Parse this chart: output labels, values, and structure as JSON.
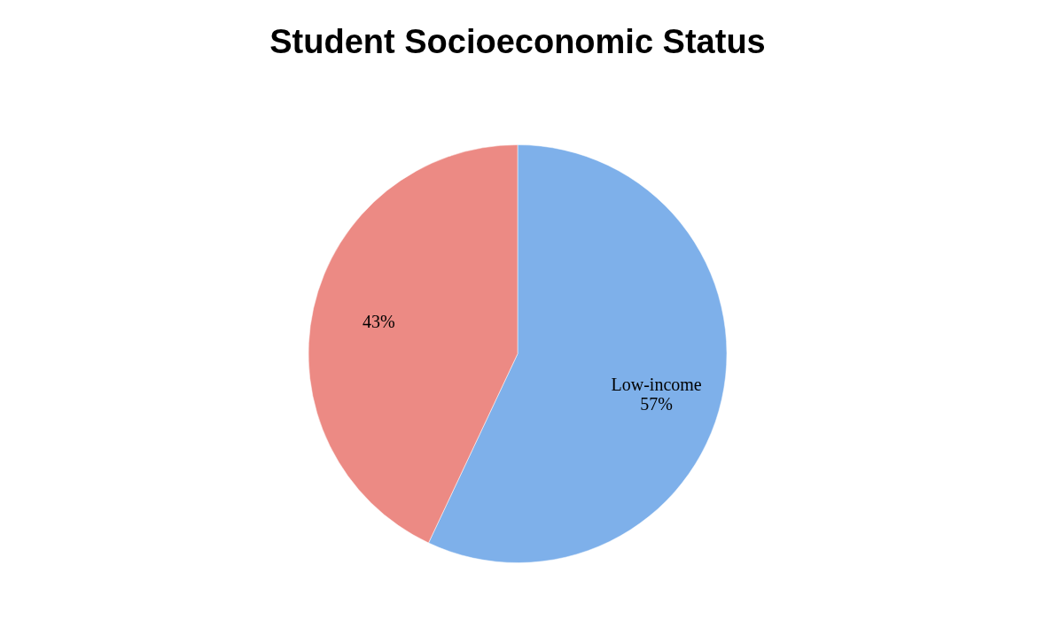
{
  "chart_data": {
    "type": "pie",
    "title": "Student Socioeconomic Status",
    "categories": [
      "Low-income",
      null
    ],
    "values": [
      57,
      43
    ],
    "colors": [
      "#7eb0ea",
      "#ec8a84"
    ],
    "value_labels": [
      "57%",
      "43%"
    ],
    "legend": false
  }
}
